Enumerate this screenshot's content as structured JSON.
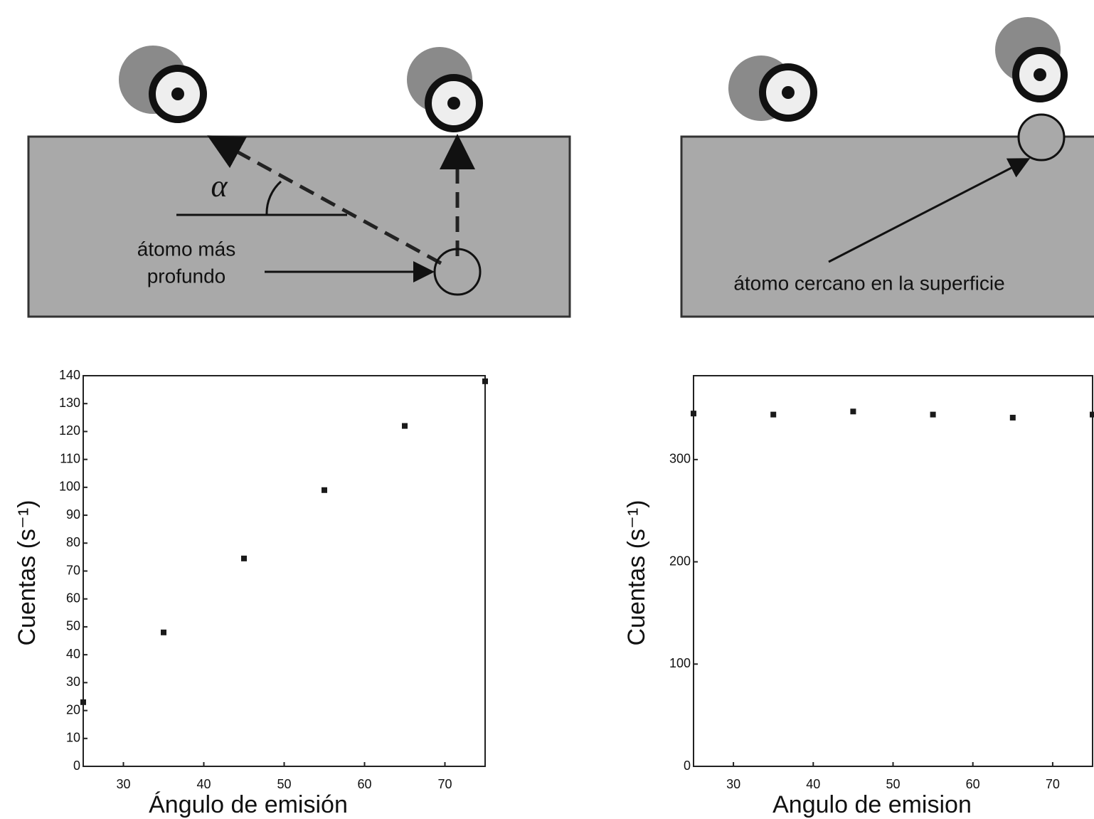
{
  "chart_data": [
    {
      "type": "scatter",
      "xlabel": "Ángulo de emisión",
      "ylabel": "Cuentas (s⁻¹)",
      "x": [
        25,
        35,
        45,
        55,
        65,
        75
      ],
      "values": [
        23,
        48,
        74.5,
        99,
        122,
        138
      ],
      "color": "#1a1a1a",
      "xlim": [
        25,
        75
      ],
      "ylim": [
        0,
        140
      ],
      "xticks": [
        30,
        40,
        50,
        60,
        70
      ],
      "yticks": [
        0,
        10,
        20,
        30,
        40,
        50,
        60,
        70,
        80,
        90,
        100,
        110,
        120,
        130,
        140
      ]
    },
    {
      "type": "scatter",
      "xlabel": "Angulo de emision",
      "ylabel": "Cuentas (s⁻¹)",
      "x": [
        25,
        35,
        45,
        55,
        65,
        75
      ],
      "values": [
        345,
        344,
        347,
        344,
        341,
        344
      ],
      "color": "#1a1a1a",
      "xlim": [
        25,
        75
      ],
      "ylim": [
        0,
        382
      ],
      "xticks": [
        30,
        40,
        50,
        60,
        70
      ],
      "yticks": [
        0,
        100,
        200,
        300
      ]
    }
  ],
  "diagrams": {
    "left": {
      "angle_label": "α",
      "atom_label": [
        "átomo más",
        "profundo"
      ]
    },
    "right": {
      "atom_label": "átomo cercano en la superficie"
    }
  }
}
